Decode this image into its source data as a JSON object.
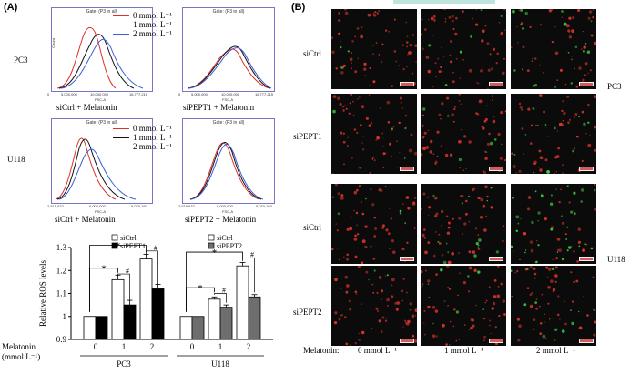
{
  "panel_a": {
    "label": "(A)",
    "gate_text": "Gate: (P3 in all)",
    "y_axis_label": "Count",
    "x_axis_label": "FSC-A",
    "legend": [
      {
        "label": "0 mmol L⁻¹",
        "color": "#e0302a"
      },
      {
        "label": "1 mmol L⁻¹",
        "color": "#111111"
      },
      {
        "label": "2 mmol L⁻¹",
        "color": "#3a5fd9"
      }
    ],
    "rows": [
      {
        "label": "PC3"
      },
      {
        "label": "U118"
      }
    ],
    "histograms": [
      {
        "caption": "siCtrl + Melatonin",
        "ticks": [
          "0",
          "5,000,000",
          "10,000,000",
          "16,777,215"
        ]
      },
      {
        "caption": "siPEPT1 + Melatonin",
        "ticks": [
          "0",
          "5,000,000",
          "10,000,000",
          "16,777,215"
        ]
      },
      {
        "caption": "siCtrl + Melatonin",
        "ticks": [
          "2,516,632",
          "6,000,000",
          "9,070,160"
        ]
      },
      {
        "caption": "siPEPT2 + Melatonin",
        "ticks": [
          "2,516,632",
          "6,000,000",
          "9,070,160"
        ]
      }
    ]
  },
  "chart_data": {
    "type": "bar",
    "ylabel": "Relative ROS levels",
    "ylim": [
      0.9,
      1.3
    ],
    "yticks": [
      "0.9",
      "1",
      "1.1",
      "1.2",
      "1.3"
    ],
    "x_axis_title": "Melatonin\n(mmol L⁻¹)",
    "x_axis_title_line1": "Melatonin",
    "x_axis_title_line2": "(mmol L⁻¹)",
    "groups": [
      {
        "name": "PC3",
        "categories": [
          "0",
          "1",
          "2"
        ],
        "series": [
          {
            "name": "siCtrl",
            "values": [
              1.0,
              1.16,
              1.25
            ],
            "errors": [
              0,
              0.02,
              0.02
            ]
          },
          {
            "name": "siPEPT1",
            "values": [
              1.0,
              1.05,
              1.12
            ],
            "errors": [
              0,
              0.02,
              0.02
            ]
          }
        ],
        "significance": [
          "*",
          "*",
          "#",
          "#"
        ]
      },
      {
        "name": "U118",
        "categories": [
          "0",
          "1",
          "2"
        ],
        "series": [
          {
            "name": "siCtrl",
            "values": [
              1.0,
              1.075,
              1.22
            ],
            "errors": [
              0,
              0.01,
              0.015
            ]
          },
          {
            "name": "siPEPT2",
            "values": [
              1.0,
              1.04,
              1.085
            ],
            "errors": [
              0,
              0.01,
              0.01
            ]
          }
        ],
        "significance": [
          "*",
          "*",
          "#",
          "#"
        ]
      }
    ],
    "colors": {
      "siCtrl": "#ffffff",
      "siPEPT1": "#000000",
      "siPEPT2": "#6e6e6e"
    }
  },
  "panel_b": {
    "label": "(B)",
    "row_labels": [
      "siCtrl",
      "siPEPT1",
      "siCtrl",
      "siPEPT2"
    ],
    "group_labels": [
      "PC3",
      "U118"
    ],
    "bottom_title": "Melatonin:",
    "column_labels": [
      "0 mmol L⁻¹",
      "1 mmol L⁻¹",
      "2 mmol L⁻¹"
    ]
  }
}
